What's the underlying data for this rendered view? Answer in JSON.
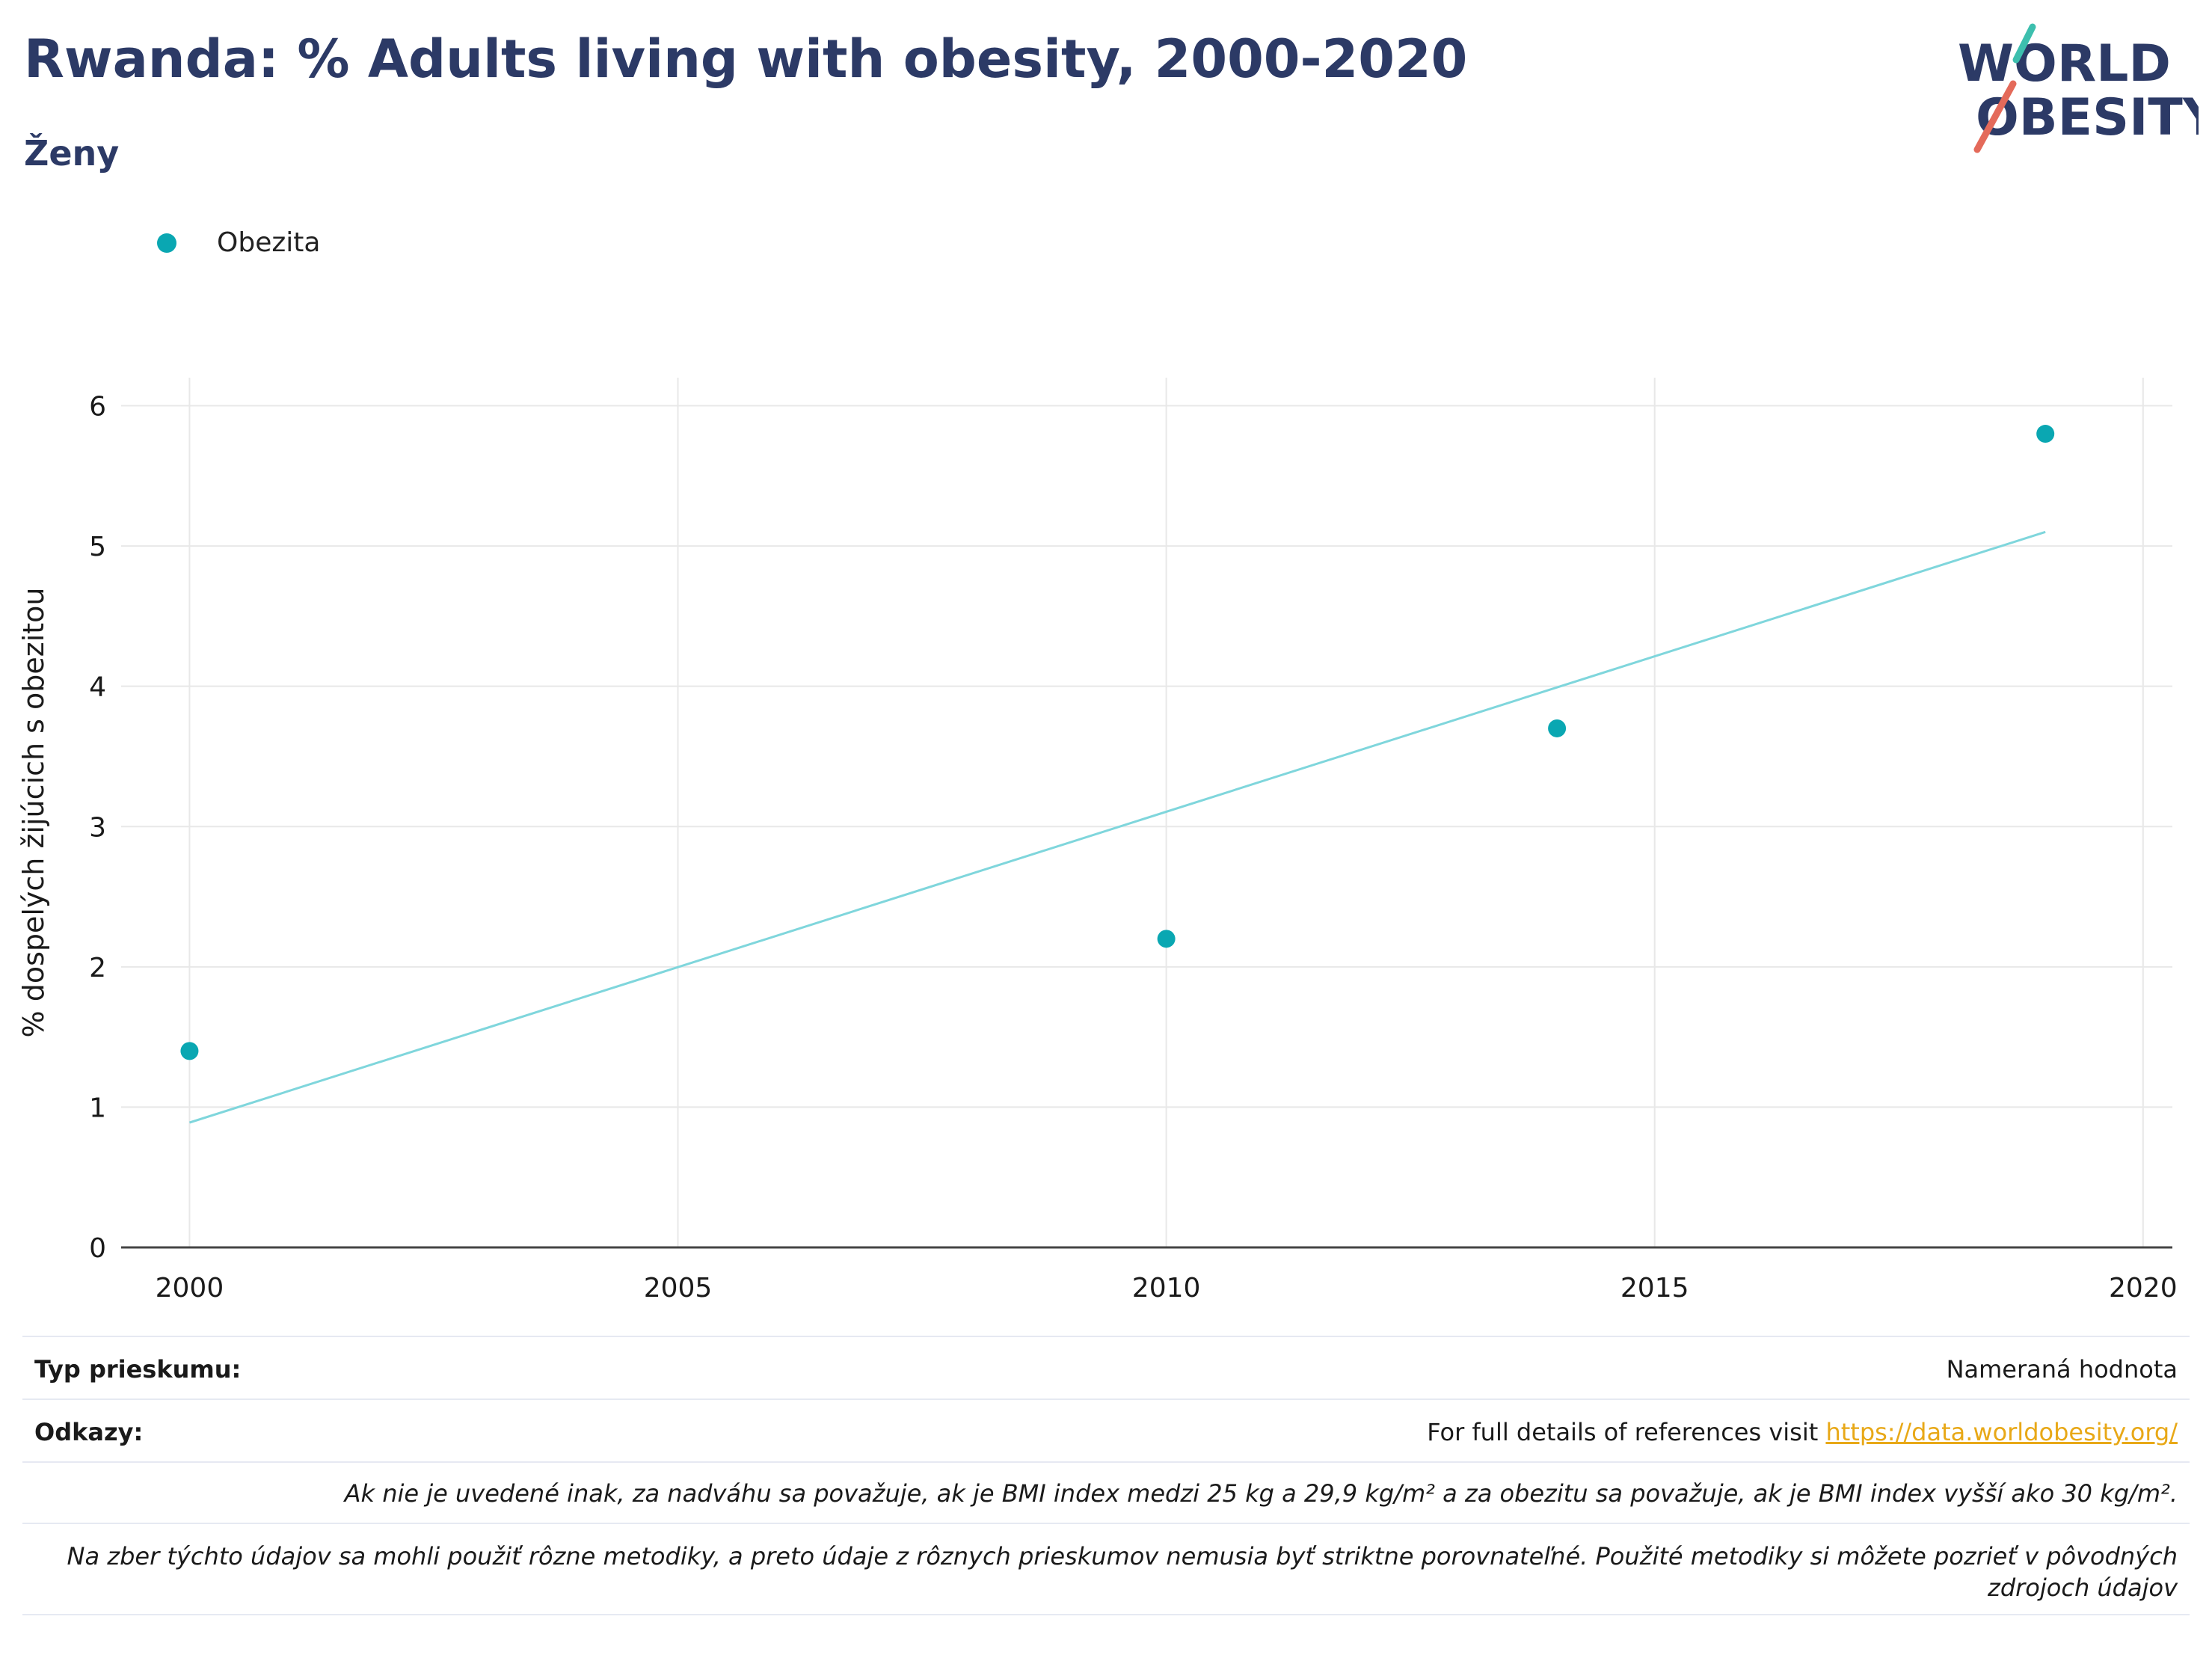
{
  "title": "Rwanda: % Adults living with obesity, 2000-2020",
  "subtitle": "Ženy",
  "logo": {
    "line1": "WORLD",
    "line2": "OBESITY",
    "colors": [
      "#2c3a66",
      "#3dbfae",
      "#e46a5a"
    ]
  },
  "colors": {
    "points": "#0aa7b2",
    "trend": "#7fd6dc",
    "title": "#2c3a66",
    "grid": "#e8e8e8",
    "axis": "#444444",
    "link": "#e8a817"
  },
  "chart_data": {
    "type": "scatter",
    "title": "Rwanda: % Adults living with obesity, 2000-2020",
    "subtitle": "Ženy",
    "xlabel": "",
    "ylabel": "% dospelých žijúcich s obezitou",
    "xlim": [
      1999.3,
      2020.3
    ],
    "ylim": [
      0,
      6.2
    ],
    "xticks": [
      2000,
      2005,
      2010,
      2015,
      2020
    ],
    "yticks": [
      0,
      1,
      2,
      3,
      4,
      5,
      6
    ],
    "grid": true,
    "legend": {
      "placement": "top-left",
      "entries": [
        "Obezita"
      ]
    },
    "series": [
      {
        "name": "Obezita",
        "x": [
          2000,
          2010,
          2014,
          2019
        ],
        "y": [
          1.4,
          2.2,
          3.7,
          5.8
        ]
      }
    ],
    "trendline": {
      "x": [
        2000,
        2019
      ],
      "y": [
        0.89,
        5.1
      ]
    }
  },
  "footer": {
    "survey_label": "Typ prieskumu:",
    "survey_value": "Nameraná hodnota",
    "refs_label": "Odkazy:",
    "refs_text": "For full details of references visit ",
    "refs_link": "https://data.worldobesity.org/",
    "note1": "Ak nie je uvedené inak, za nadváhu sa považuje, ak je BMI index medzi 25 kg a 29,9 kg/m² a za obezitu sa považuje, ak je BMI index vyšší ako 30 kg/m².",
    "note2": "Na zber týchto údajov sa mohli použiť rôzne metodiky, a preto údaje z rôznych prieskumov nemusia byť striktne porovnateľné. Použité metodiky si môžete pozrieť v pôvodných zdrojoch údajov"
  }
}
